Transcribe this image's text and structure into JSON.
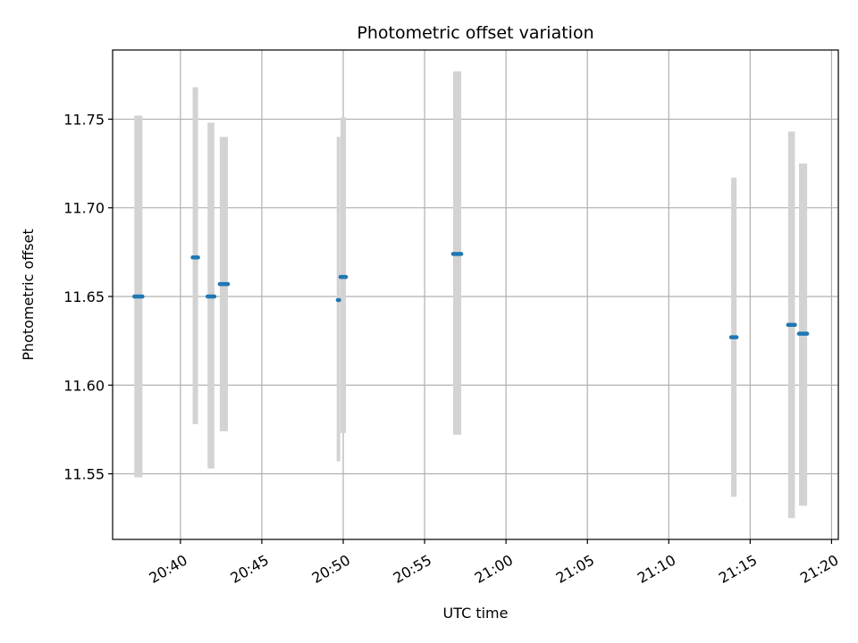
{
  "chart_data": {
    "type": "scatter",
    "title": "Photometric offset variation",
    "xlabel": "UTC time",
    "ylabel": "Photometric offset",
    "x_axis_type": "time",
    "xlim": [
      "20:35:50",
      "21:20:25"
    ],
    "ylim": [
      11.513,
      11.789
    ],
    "grid": true,
    "x_ticks": [
      "20:40",
      "20:45",
      "20:50",
      "20:55",
      "21:00",
      "21:05",
      "21:10",
      "21:15",
      "21:20"
    ],
    "y_ticks": [
      "11.55",
      "11.60",
      "11.65",
      "11.70",
      "11.75"
    ],
    "colors": {
      "point": "#1f77b4",
      "errorbar": "#d3d3d3",
      "grid": "#b0b0b0"
    },
    "series": [
      {
        "points": [
          {
            "t_start": "20:37:10",
            "t_end": "20:37:40",
            "y": 11.65,
            "y_low": 11.548,
            "y_high": 11.752
          },
          {
            "t_start": "20:40:45",
            "t_end": "20:41:05",
            "y": 11.672,
            "y_low": 11.578,
            "y_high": 11.768
          },
          {
            "t_start": "20:41:40",
            "t_end": "20:42:05",
            "y": 11.65,
            "y_low": 11.553,
            "y_high": 11.748
          },
          {
            "t_start": "20:42:25",
            "t_end": "20:42:55",
            "y": 11.657,
            "y_low": 11.574,
            "y_high": 11.74
          },
          {
            "t_start": "20:49:40",
            "t_end": "20:49:45",
            "y": 11.648,
            "y_low": 11.557,
            "y_high": 11.74
          },
          {
            "t_start": "20:49:50",
            "t_end": "20:50:10",
            "y": 11.661,
            "y_low": 11.573,
            "y_high": 11.751
          },
          {
            "t_start": "20:56:45",
            "t_end": "20:57:15",
            "y": 11.674,
            "y_low": 11.572,
            "y_high": 11.777
          },
          {
            "t_start": "21:13:50",
            "t_end": "21:14:10",
            "y": 11.627,
            "y_low": 11.537,
            "y_high": 11.717
          },
          {
            "t_start": "21:17:20",
            "t_end": "21:17:45",
            "y": 11.634,
            "y_low": 11.525,
            "y_high": 11.743
          },
          {
            "t_start": "21:18:00",
            "t_end": "21:18:30",
            "y": 11.629,
            "y_low": 11.532,
            "y_high": 11.725
          }
        ]
      }
    ]
  }
}
